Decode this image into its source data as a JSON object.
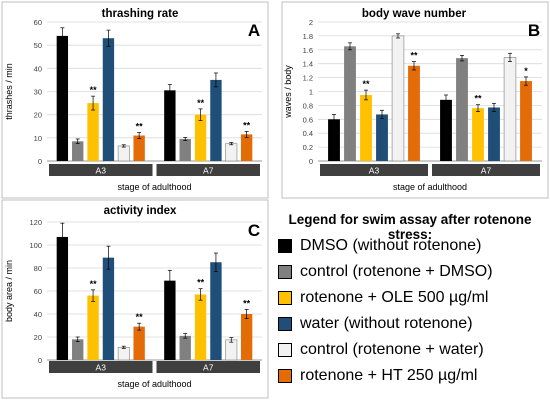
{
  "chart_data": [
    {
      "type": "bar",
      "panel_letter": "A",
      "title": "thrashing rate",
      "ylabel": "thrashes / min",
      "xlabel": "stage of adulthood",
      "ylim": [
        0,
        60
      ],
      "yticks": [
        0,
        10,
        20,
        30,
        40,
        50,
        60
      ],
      "categories": [
        "A3",
        "A7"
      ],
      "series": [
        {
          "name": "DMSO (without rotenone)",
          "values": [
            54,
            30.5
          ],
          "errors": [
            3.5,
            2.5
          ],
          "sig": [
            "",
            ""
          ]
        },
        {
          "name": "control (rotenone + DMSO)",
          "values": [
            8.5,
            9.5
          ],
          "errors": [
            1,
            0.7
          ],
          "sig": [
            "",
            ""
          ]
        },
        {
          "name": "rotenone + OLE 500 µg/ml",
          "values": [
            25,
            20
          ],
          "errors": [
            3,
            2.5
          ],
          "sig": [
            "**",
            "**"
          ]
        },
        {
          "name": "water (without rotenone)",
          "values": [
            53,
            35
          ],
          "errors": [
            3.5,
            3
          ],
          "sig": [
            "",
            ""
          ]
        },
        {
          "name": "control (rotenone + water)",
          "values": [
            6.5,
            7.5
          ],
          "errors": [
            0.5,
            0.5
          ],
          "sig": [
            "",
            ""
          ]
        },
        {
          "name": "rotenone + HT 250 µg/ml",
          "values": [
            11,
            11.5
          ],
          "errors": [
            1.3,
            1.3
          ],
          "sig": [
            "**",
            "**"
          ]
        }
      ]
    },
    {
      "type": "bar",
      "panel_letter": "B",
      "title": "body wave number",
      "ylabel": "waves / body",
      "xlabel": "stage of adulthood",
      "ylim": [
        0,
        2
      ],
      "yticks": [
        0,
        0.2,
        0.4,
        0.6,
        0.8,
        1,
        1.2,
        1.4,
        1.6,
        1.8,
        2
      ],
      "categories": [
        "A3",
        "A7"
      ],
      "series": [
        {
          "name": "DMSO (without rotenone)",
          "values": [
            0.6,
            0.88
          ],
          "errors": [
            0.07,
            0.07
          ],
          "sig": [
            "",
            ""
          ]
        },
        {
          "name": "control (rotenone + DMSO)",
          "values": [
            1.65,
            1.48
          ],
          "errors": [
            0.05,
            0.04
          ],
          "sig": [
            "",
            ""
          ]
        },
        {
          "name": "rotenone + OLE 500 µg/ml",
          "values": [
            0.95,
            0.76
          ],
          "errors": [
            0.07,
            0.05
          ],
          "sig": [
            "**",
            "**"
          ]
        },
        {
          "name": "water (without rotenone)",
          "values": [
            0.67,
            0.77
          ],
          "errors": [
            0.06,
            0.06
          ],
          "sig": [
            "",
            ""
          ]
        },
        {
          "name": "control (rotenone + water)",
          "values": [
            1.8,
            1.49
          ],
          "errors": [
            0.03,
            0.06
          ],
          "sig": [
            "",
            ""
          ]
        },
        {
          "name": "rotenone + HT 250 µg/ml",
          "values": [
            1.37,
            1.15
          ],
          "errors": [
            0.06,
            0.06
          ],
          "sig": [
            "**",
            "*"
          ]
        }
      ]
    },
    {
      "type": "bar",
      "panel_letter": "C",
      "title": "activity index",
      "ylabel": "body area / min",
      "xlabel": "stage of adulthood",
      "ylim": [
        0,
        120
      ],
      "yticks": [
        0,
        20,
        40,
        60,
        80,
        100,
        120
      ],
      "categories": [
        "A3",
        "A7"
      ],
      "series": [
        {
          "name": "DMSO (without rotenone)",
          "values": [
            107,
            69
          ],
          "errors": [
            12,
            9
          ],
          "sig": [
            "",
            ""
          ]
        },
        {
          "name": "control (rotenone + DMSO)",
          "values": [
            18,
            21
          ],
          "errors": [
            2,
            2
          ],
          "sig": [
            "",
            ""
          ]
        },
        {
          "name": "rotenone + OLE 500 µg/ml",
          "values": [
            56,
            57
          ],
          "errors": [
            5,
            5
          ],
          "sig": [
            "**",
            "**"
          ]
        },
        {
          "name": "water (without rotenone)",
          "values": [
            89,
            85
          ],
          "errors": [
            10,
            8
          ],
          "sig": [
            "",
            ""
          ]
        },
        {
          "name": "control (rotenone + water)",
          "values": [
            11,
            17.5
          ],
          "errors": [
            1,
            2
          ],
          "sig": [
            "",
            ""
          ]
        },
        {
          "name": "rotenone + HT 250 µg/ml",
          "values": [
            29,
            40
          ],
          "errors": [
            3,
            4
          ],
          "sig": [
            "**",
            "**"
          ]
        }
      ]
    }
  ],
  "legend": {
    "title": "Legend for swim assay after rotenone stress:",
    "items": [
      {
        "label": "DMSO (without rotenone)",
        "color": "#000000"
      },
      {
        "label": "control (rotenone + DMSO)",
        "color": "#808080"
      },
      {
        "label": "rotenone + OLE 500 µg/ml",
        "color": "#FFC000"
      },
      {
        "label": "water (without rotenone)",
        "color": "#1F4E79"
      },
      {
        "label": "control (rotenone + water)",
        "color": "#F2F2F2"
      },
      {
        "label": "rotenone + HT 250 µg/ml",
        "color": "#E36C09"
      }
    ]
  },
  "colors": {
    "group_band": "#3F3F3F",
    "gridline": "#D9D9D9",
    "panel_border": "#BFBFBF"
  }
}
